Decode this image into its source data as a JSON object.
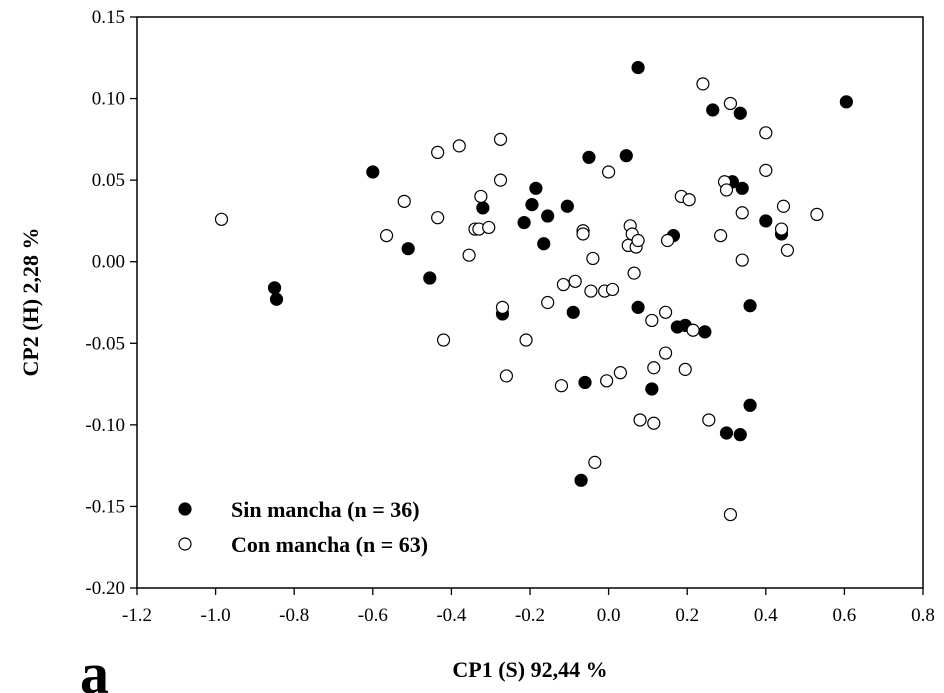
{
  "chart_data": {
    "type": "scatter",
    "title": "",
    "panel_label": "a",
    "xlabel": "CP1 (S) 92,44 %",
    "ylabel": "CP2 (H) 2,28 %",
    "xlim": [
      -1.2,
      0.8
    ],
    "ylim": [
      -0.2,
      0.15
    ],
    "xticks": [
      "-1.2",
      "-1.0",
      "-0.8",
      "-0.6",
      "-0.4",
      "-0.2",
      "0.0",
      "0.2",
      "0.4",
      "0.6",
      "0.8"
    ],
    "yticks": [
      "0.15",
      "0.10",
      "0.05",
      "0.00",
      "-0.05",
      "-0.10",
      "-0.15",
      "-0.20"
    ],
    "grid": false,
    "legend_position": "bottom-left",
    "series": [
      {
        "name": "Sin mancha (n = 36)",
        "marker": "filled-circle",
        "color": "#000000",
        "points": [
          [
            -0.85,
            -0.016
          ],
          [
            -0.845,
            -0.023
          ],
          [
            -0.6,
            0.055
          ],
          [
            -0.51,
            0.008
          ],
          [
            -0.455,
            -0.01
          ],
          [
            -0.32,
            0.033
          ],
          [
            -0.27,
            -0.032
          ],
          [
            -0.215,
            0.024
          ],
          [
            -0.195,
            0.035
          ],
          [
            -0.185,
            0.045
          ],
          [
            -0.165,
            0.011
          ],
          [
            -0.155,
            0.028
          ],
          [
            -0.105,
            0.034
          ],
          [
            -0.09,
            -0.031
          ],
          [
            -0.07,
            -0.134
          ],
          [
            -0.06,
            -0.074
          ],
          [
            -0.05,
            0.064
          ],
          [
            0.045,
            0.065
          ],
          [
            0.075,
            0.119
          ],
          [
            0.075,
            -0.028
          ],
          [
            0.11,
            -0.078
          ],
          [
            0.165,
            0.016
          ],
          [
            0.175,
            -0.04
          ],
          [
            0.195,
            -0.039
          ],
          [
            0.245,
            -0.043
          ],
          [
            0.265,
            0.093
          ],
          [
            0.3,
            -0.105
          ],
          [
            0.315,
            0.049
          ],
          [
            0.335,
            0.091
          ],
          [
            0.335,
            -0.106
          ],
          [
            0.34,
            0.045
          ],
          [
            0.36,
            -0.027
          ],
          [
            0.36,
            -0.088
          ],
          [
            0.4,
            0.025
          ],
          [
            0.44,
            0.017
          ],
          [
            0.605,
            0.098
          ]
        ]
      },
      {
        "name": "Con mancha (n = 63)",
        "marker": "open-circle",
        "color": "#000000",
        "points": [
          [
            -0.985,
            0.026
          ],
          [
            -0.565,
            0.016
          ],
          [
            -0.52,
            0.037
          ],
          [
            -0.435,
            0.067
          ],
          [
            -0.435,
            0.027
          ],
          [
            -0.42,
            -0.048
          ],
          [
            -0.38,
            0.071
          ],
          [
            -0.355,
            0.004
          ],
          [
            -0.34,
            0.02
          ],
          [
            -0.33,
            0.02
          ],
          [
            -0.325,
            0.04
          ],
          [
            -0.305,
            0.021
          ],
          [
            -0.275,
            0.075
          ],
          [
            -0.275,
            0.05
          ],
          [
            -0.27,
            -0.028
          ],
          [
            -0.26,
            -0.07
          ],
          [
            -0.21,
            -0.048
          ],
          [
            -0.155,
            -0.025
          ],
          [
            -0.12,
            -0.076
          ],
          [
            -0.115,
            -0.014
          ],
          [
            -0.085,
            -0.012
          ],
          [
            -0.065,
            0.019
          ],
          [
            -0.065,
            0.017
          ],
          [
            -0.045,
            -0.018
          ],
          [
            -0.04,
            0.002
          ],
          [
            -0.035,
            -0.123
          ],
          [
            -0.01,
            -0.018
          ],
          [
            -0.005,
            -0.073
          ],
          [
            0.0,
            0.055
          ],
          [
            0.01,
            -0.017
          ],
          [
            0.03,
            -0.068
          ],
          [
            0.05,
            0.01
          ],
          [
            0.055,
            0.022
          ],
          [
            0.06,
            0.017
          ],
          [
            0.065,
            -0.007
          ],
          [
            0.07,
            0.009
          ],
          [
            0.075,
            0.013
          ],
          [
            0.08,
            -0.097
          ],
          [
            0.11,
            -0.036
          ],
          [
            0.115,
            -0.099
          ],
          [
            0.115,
            -0.065
          ],
          [
            0.145,
            -0.031
          ],
          [
            0.145,
            -0.056
          ],
          [
            0.15,
            0.013
          ],
          [
            0.185,
            0.04
          ],
          [
            0.195,
            -0.066
          ],
          [
            0.205,
            0.038
          ],
          [
            0.215,
            -0.042
          ],
          [
            0.24,
            0.109
          ],
          [
            0.255,
            -0.097
          ],
          [
            0.285,
            0.016
          ],
          [
            0.295,
            0.049
          ],
          [
            0.3,
            0.044
          ],
          [
            0.31,
            0.097
          ],
          [
            0.31,
            -0.155
          ],
          [
            0.4,
            0.079
          ],
          [
            0.4,
            0.056
          ],
          [
            0.34,
            0.03
          ],
          [
            0.34,
            0.001
          ],
          [
            0.44,
            0.02
          ],
          [
            0.445,
            0.034
          ],
          [
            0.455,
            0.007
          ],
          [
            0.53,
            0.029
          ]
        ]
      }
    ]
  }
}
